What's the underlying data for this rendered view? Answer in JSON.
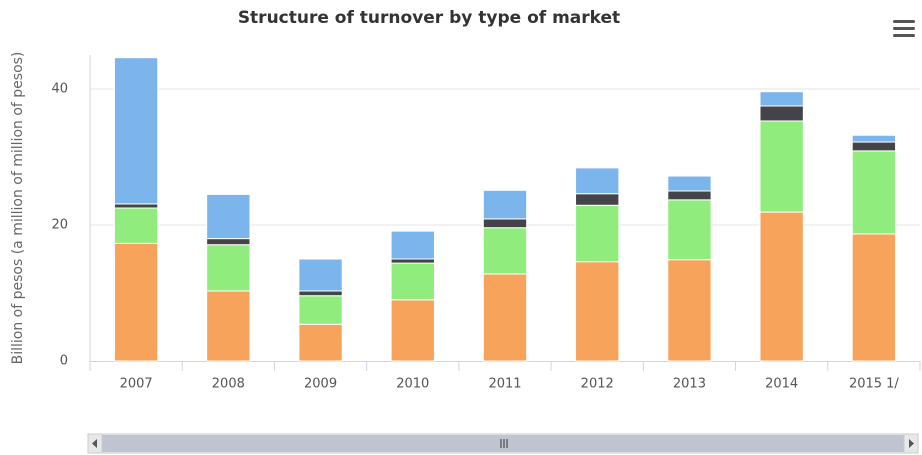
{
  "chart_data": {
    "type": "stacked_bar",
    "title": "Structure of turnover by type of market",
    "y_label": "Billion of pesos (a million of million of pesos)",
    "categories": [
      "2007",
      "2008",
      "2009",
      "2010",
      "2011",
      "2012",
      "2013",
      "2014",
      "2015 1/"
    ],
    "series": [
      {
        "color": "#f7a35c",
        "values": [
          17.3,
          10.3,
          5.4,
          9.0,
          12.8,
          14.6,
          14.9,
          21.9,
          18.7
        ]
      },
      {
        "color": "#90ed7d",
        "values": [
          5.2,
          6.8,
          4.2,
          5.4,
          6.8,
          8.3,
          8.8,
          13.4,
          12.2
        ]
      },
      {
        "color": "#434348",
        "values": [
          0.6,
          0.9,
          0.7,
          0.6,
          1.3,
          1.7,
          1.3,
          2.2,
          1.3
        ]
      },
      {
        "color": "#7cb5ec",
        "values": [
          21.5,
          6.5,
          4.7,
          4.1,
          4.2,
          3.8,
          2.2,
          2.1,
          1.0
        ]
      }
    ],
    "ylim": [
      0,
      45
    ],
    "yticks": [
      0,
      20,
      40
    ],
    "grid": true
  }
}
